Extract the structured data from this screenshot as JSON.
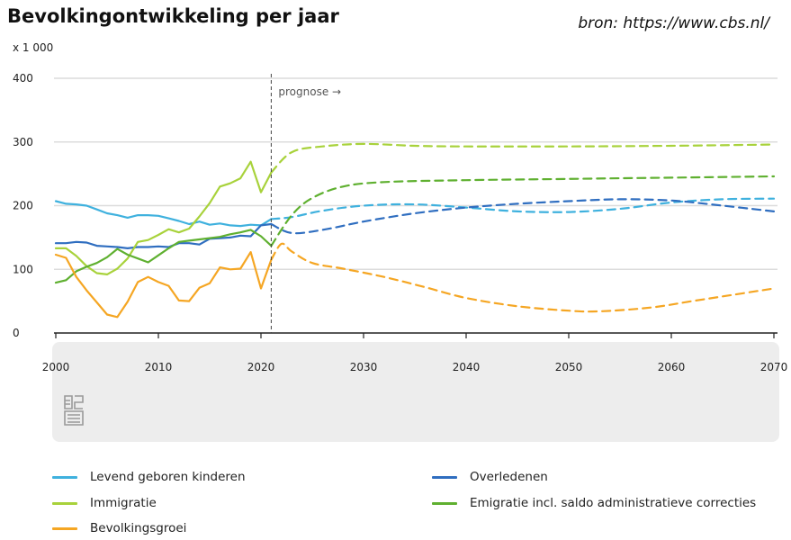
{
  "header": {
    "title": "Bevolkingontwikkeling per jaar",
    "source": "bron: https://www.cbs.nl/",
    "unit": "x 1 000"
  },
  "logo": {
    "icon": "cbs-logo-icon"
  },
  "chart_data": {
    "type": "line",
    "ylim": [
      0,
      400
    ],
    "xlim": [
      2000,
      2070
    ],
    "x_ticks": [
      2000,
      2010,
      2020,
      2030,
      2040,
      2050,
      2060,
      2070
    ],
    "y_ticks": [
      0,
      100,
      200,
      300,
      400
    ],
    "grid": "horizontal",
    "prognose_start": 2021,
    "annotation": "prognose →",
    "legend_position": "bottom",
    "series": [
      {
        "name": "Levend geboren kinderen",
        "color": "#3fb1de",
        "observed": [
          [
            2000,
            207
          ],
          [
            2001,
            203
          ],
          [
            2002,
            202
          ],
          [
            2003,
            200
          ],
          [
            2004,
            194
          ],
          [
            2005,
            188
          ],
          [
            2006,
            185
          ],
          [
            2007,
            181
          ],
          [
            2008,
            185
          ],
          [
            2009,
            185
          ],
          [
            2010,
            184
          ],
          [
            2011,
            180
          ],
          [
            2012,
            176
          ],
          [
            2013,
            171
          ],
          [
            2014,
            175
          ],
          [
            2015,
            170
          ],
          [
            2016,
            172
          ],
          [
            2017,
            169
          ],
          [
            2018,
            168
          ],
          [
            2019,
            170
          ],
          [
            2020,
            169
          ],
          [
            2021,
            179
          ]
        ],
        "projected": [
          [
            2021,
            179
          ],
          [
            2023,
            182
          ],
          [
            2026,
            192
          ],
          [
            2030,
            200
          ],
          [
            2035,
            202
          ],
          [
            2040,
            197
          ],
          [
            2045,
            191
          ],
          [
            2050,
            190
          ],
          [
            2055,
            195
          ],
          [
            2060,
            205
          ],
          [
            2065,
            210
          ],
          [
            2070,
            211
          ]
        ]
      },
      {
        "name": "Overledenen",
        "color": "#2f6ec0",
        "observed": [
          [
            2000,
            141
          ],
          [
            2001,
            141
          ],
          [
            2002,
            143
          ],
          [
            2003,
            142
          ],
          [
            2004,
            137
          ],
          [
            2005,
            136
          ],
          [
            2006,
            135
          ],
          [
            2007,
            133
          ],
          [
            2008,
            135
          ],
          [
            2009,
            135
          ],
          [
            2010,
            136
          ],
          [
            2011,
            135
          ],
          [
            2012,
            141
          ],
          [
            2013,
            141
          ],
          [
            2014,
            139
          ],
          [
            2015,
            148
          ],
          [
            2016,
            149
          ],
          [
            2017,
            150
          ],
          [
            2018,
            153
          ],
          [
            2019,
            152
          ],
          [
            2020,
            169
          ],
          [
            2021,
            171
          ]
        ],
        "projected": [
          [
            2021,
            171
          ],
          [
            2023,
            157
          ],
          [
            2026,
            162
          ],
          [
            2030,
            175
          ],
          [
            2035,
            188
          ],
          [
            2040,
            197
          ],
          [
            2045,
            203
          ],
          [
            2050,
            207
          ],
          [
            2055,
            210
          ],
          [
            2060,
            208
          ],
          [
            2065,
            200
          ],
          [
            2070,
            191
          ]
        ]
      },
      {
        "name": "Immigratie",
        "color": "#a8d23b",
        "observed": [
          [
            2000,
            133
          ],
          [
            2001,
            133
          ],
          [
            2002,
            121
          ],
          [
            2003,
            105
          ],
          [
            2004,
            94
          ],
          [
            2005,
            92
          ],
          [
            2006,
            101
          ],
          [
            2007,
            117
          ],
          [
            2008,
            143
          ],
          [
            2009,
            146
          ],
          [
            2010,
            154
          ],
          [
            2011,
            163
          ],
          [
            2012,
            158
          ],
          [
            2013,
            164
          ],
          [
            2014,
            183
          ],
          [
            2015,
            204
          ],
          [
            2016,
            230
          ],
          [
            2017,
            235
          ],
          [
            2018,
            243
          ],
          [
            2019,
            269
          ],
          [
            2020,
            221
          ],
          [
            2021,
            252
          ]
        ],
        "projected": [
          [
            2021,
            252
          ],
          [
            2023,
            284
          ],
          [
            2026,
            293
          ],
          [
            2030,
            297
          ],
          [
            2035,
            294
          ],
          [
            2040,
            293
          ],
          [
            2050,
            293
          ],
          [
            2060,
            294
          ],
          [
            2070,
            296
          ]
        ]
      },
      {
        "name": "Emigratie incl. saldo administratieve correcties",
        "color": "#5fb030",
        "observed": [
          [
            2000,
            79
          ],
          [
            2001,
            83
          ],
          [
            2002,
            97
          ],
          [
            2003,
            104
          ],
          [
            2004,
            110
          ],
          [
            2005,
            119
          ],
          [
            2006,
            132
          ],
          [
            2007,
            123
          ],
          [
            2008,
            117
          ],
          [
            2009,
            111
          ],
          [
            2010,
            122
          ],
          [
            2011,
            133
          ],
          [
            2012,
            143
          ],
          [
            2013,
            145
          ],
          [
            2014,
            147
          ],
          [
            2015,
            149
          ],
          [
            2016,
            151
          ],
          [
            2017,
            155
          ],
          [
            2018,
            158
          ],
          [
            2019,
            162
          ],
          [
            2020,
            152
          ],
          [
            2021,
            137
          ]
        ],
        "projected": [
          [
            2021,
            137
          ],
          [
            2023,
            185
          ],
          [
            2025,
            212
          ],
          [
            2028,
            230
          ],
          [
            2032,
            237
          ],
          [
            2040,
            240
          ],
          [
            2050,
            242
          ],
          [
            2060,
            244
          ],
          [
            2070,
            246
          ]
        ]
      },
      {
        "name": "Bevolkingsgroei",
        "color": "#f5a623",
        "observed": [
          [
            2000,
            123
          ],
          [
            2001,
            118
          ],
          [
            2002,
            88
          ],
          [
            2003,
            67
          ],
          [
            2004,
            48
          ],
          [
            2005,
            29
          ],
          [
            2006,
            25
          ],
          [
            2007,
            49
          ],
          [
            2008,
            80
          ],
          [
            2009,
            88
          ],
          [
            2010,
            80
          ],
          [
            2011,
            74
          ],
          [
            2012,
            51
          ],
          [
            2013,
            50
          ],
          [
            2014,
            71
          ],
          [
            2015,
            78
          ],
          [
            2016,
            103
          ],
          [
            2017,
            100
          ],
          [
            2018,
            101
          ],
          [
            2019,
            127
          ],
          [
            2020,
            70
          ],
          [
            2021,
            115
          ]
        ],
        "projected": [
          [
            2021,
            115
          ],
          [
            2022,
            140
          ],
          [
            2023,
            128
          ],
          [
            2025,
            110
          ],
          [
            2028,
            101
          ],
          [
            2032,
            88
          ],
          [
            2036,
            72
          ],
          [
            2040,
            55
          ],
          [
            2045,
            42
          ],
          [
            2050,
            35
          ],
          [
            2053,
            34
          ],
          [
            2058,
            40
          ],
          [
            2062,
            50
          ],
          [
            2066,
            60
          ],
          [
            2070,
            70
          ]
        ]
      }
    ]
  },
  "legend": [
    {
      "label": "Levend geboren kinderen",
      "color": "#3fb1de"
    },
    {
      "label": "Overledenen",
      "color": "#2f6ec0"
    },
    {
      "label": "Immigratie",
      "color": "#a8d23b"
    },
    {
      "label": "Emigratie incl. saldo administratieve correcties",
      "color": "#5fb030"
    },
    {
      "label": "Bevolkingsgroei",
      "color": "#f5a623"
    }
  ]
}
